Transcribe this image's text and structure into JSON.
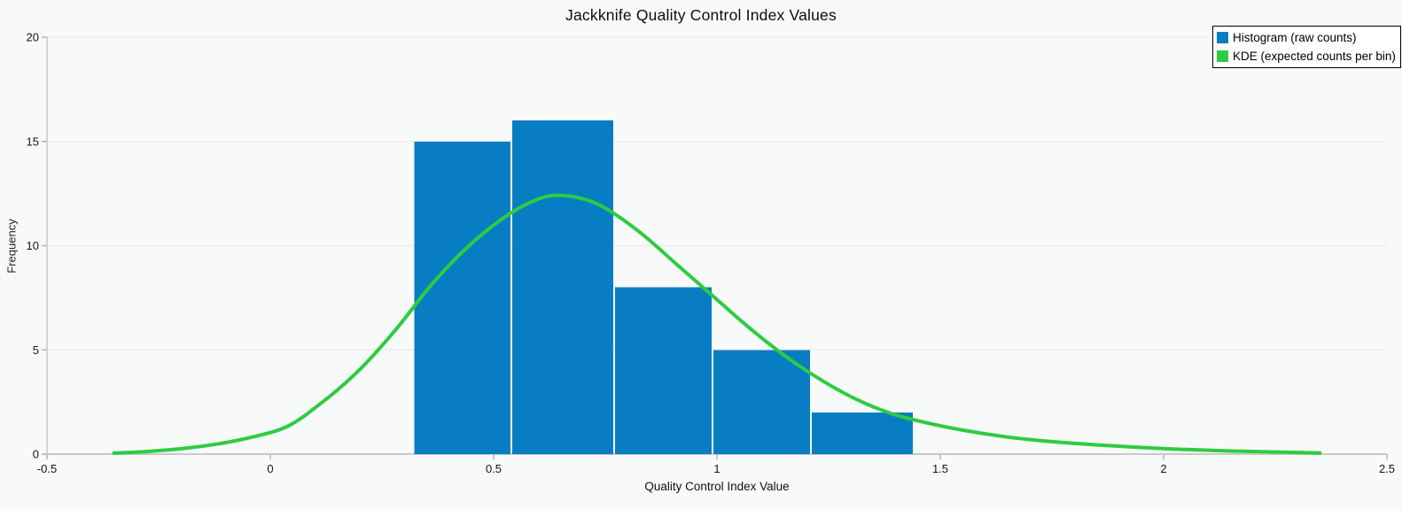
{
  "title": "Jackknife Quality Control Index Values",
  "legend": {
    "items": [
      {
        "label": "Histogram (raw counts)",
        "color": "#087dc4"
      },
      {
        "label": "KDE (expected counts per bin)",
        "color": "#2ecc40"
      }
    ]
  },
  "colors": {
    "background": "#f8f9f9",
    "bar_blue": "#087dc4",
    "kde_green": "#2ecc40",
    "gridline": "#ececec",
    "axis_line": "#c9c9c9",
    "tick_mark": "#b3b3b3",
    "text": "#151515",
    "legend_border": "#000000",
    "legend_background": "#ffffff"
  },
  "chart_data": {
    "type": "bar",
    "subtype": "histogram-with-kde-line",
    "title": "Jackknife Quality Control Index Values",
    "xlabel": "Quality Control Index Value",
    "ylabel": "Frequency",
    "xlim": [
      -0.5,
      2.5
    ],
    "ylim": [
      0,
      20
    ],
    "x_ticks": [
      -0.5,
      0,
      0.5,
      1,
      1.5,
      2,
      2.5
    ],
    "x_tick_labels": [
      "-0.5",
      "0",
      "0.5",
      "1",
      "1.5",
      "2",
      "2.5"
    ],
    "y_ticks": [
      0,
      5,
      10,
      15,
      20
    ],
    "y_tick_labels": [
      "0",
      "5",
      "10",
      "15",
      "20"
    ],
    "grid": "horizontal-only",
    "legend_position": "top-right",
    "series": [
      {
        "name": "Histogram (raw counts)",
        "type": "bar",
        "color": "#087dc4",
        "bin_edges": [
          0.32,
          0.54,
          0.77,
          0.99,
          1.21,
          1.44
        ],
        "counts": [
          15,
          16,
          8,
          5,
          2
        ]
      },
      {
        "name": "KDE (expected counts per bin)",
        "type": "line",
        "color": "#2ecc40",
        "stroke_width": 4,
        "points": [
          [
            -0.35,
            0.05
          ],
          [
            -0.28,
            0.12
          ],
          [
            -0.2,
            0.26
          ],
          [
            -0.12,
            0.48
          ],
          [
            -0.04,
            0.82
          ],
          [
            0.04,
            1.35
          ],
          [
            0.12,
            2.55
          ],
          [
            0.2,
            4.05
          ],
          [
            0.28,
            5.95
          ],
          [
            0.36,
            8.1
          ],
          [
            0.44,
            9.9
          ],
          [
            0.52,
            11.3
          ],
          [
            0.58,
            12.05
          ],
          [
            0.63,
            12.4
          ],
          [
            0.69,
            12.3
          ],
          [
            0.75,
            11.8
          ],
          [
            0.83,
            10.6
          ],
          [
            0.91,
            9.1
          ],
          [
            0.99,
            7.6
          ],
          [
            1.07,
            6.1
          ],
          [
            1.15,
            4.75
          ],
          [
            1.23,
            3.6
          ],
          [
            1.31,
            2.65
          ],
          [
            1.39,
            1.95
          ],
          [
            1.47,
            1.5
          ],
          [
            1.55,
            1.15
          ],
          [
            1.65,
            0.82
          ],
          [
            1.75,
            0.6
          ],
          [
            1.85,
            0.44
          ],
          [
            1.95,
            0.32
          ],
          [
            2.05,
            0.22
          ],
          [
            2.15,
            0.15
          ],
          [
            2.25,
            0.1
          ],
          [
            2.35,
            0.05
          ]
        ]
      }
    ]
  }
}
